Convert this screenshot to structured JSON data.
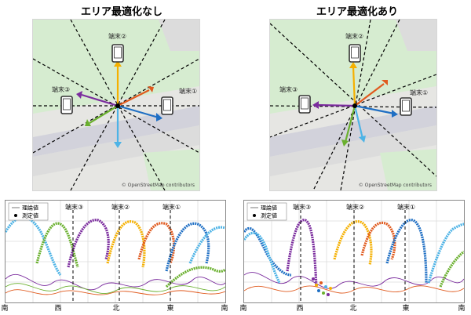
{
  "left": {
    "title": "エリア最適化なし",
    "map": {
      "terminal_1": "端末①",
      "terminal_2": "端末②",
      "terminal_3": "端末③",
      "attribution": "© OpenStreetMap contributors"
    },
    "chart": {
      "legend_theory": "理論値",
      "legend_measured": "測定値",
      "terminal_3": "端末③",
      "terminal_2": "端末②",
      "terminal_1": "端末①",
      "x_labels": [
        "南",
        "西",
        "北",
        "東",
        "南"
      ]
    }
  },
  "right": {
    "title": "エリア最適化あり",
    "map": {
      "terminal_1": "端末①",
      "terminal_2": "端末②",
      "terminal_3": "端末③",
      "attribution": "© OpenStreetMap contributors"
    },
    "chart": {
      "legend_theory": "理論値",
      "legend_measured": "測定値",
      "terminal_3": "端末③",
      "terminal_2": "端末②",
      "terminal_1": "端末①",
      "x_labels": [
        "南",
        "西",
        "北",
        "東",
        "南"
      ]
    }
  },
  "colors": {
    "orange": "#f5b000",
    "red_orange": "#e05a1e",
    "blue": "#1f6fc4",
    "light_blue": "#4db3e6",
    "green": "#6ab02e",
    "purple": "#7b2c9e",
    "map_bg": "#e6e6e3",
    "map_green": "#d6ecd0",
    "map_road": "#cfcfd6"
  }
}
